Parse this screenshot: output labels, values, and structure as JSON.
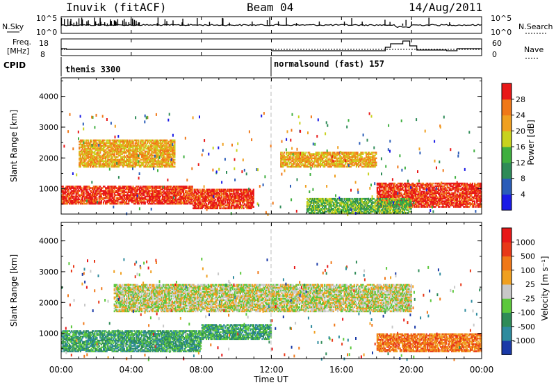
{
  "header": {
    "station": "Inuvik (fitACF)",
    "beam": "Beam 04",
    "date": "14/Aug/2011"
  },
  "top_panels": {
    "nsky_label": "N.Sky",
    "nsky_hi": "10^5",
    "nsky_lo": "10^0",
    "nsearch_label": "N.Search",
    "nsearch_hi": "10^5",
    "nsearch_lo": "10^0",
    "freq_label": "Freq.",
    "freq_unit": "[MHz]",
    "freq_hi": "18",
    "freq_lo": "8",
    "nave_label": "Nave",
    "nave_hi": "60",
    "nave_lo": "0",
    "cpid_label": "CPID",
    "cpid_1": "themis 3300",
    "cpid_2": "normalsound (fast) 157"
  },
  "chart_data": [
    {
      "type": "heatmap",
      "quantity": "Power",
      "ylabel": "Slant Range [km]",
      "xlabel": "Time UT",
      "ylim": [
        180,
        4600
      ],
      "yticks": [
        "1000",
        "2000",
        "3000",
        "4000"
      ],
      "xticks": [
        "00:00",
        "04:00",
        "08:00",
        "12:00",
        "16:00",
        "20:00",
        "00:00"
      ],
      "colorbar_label": "Power [dB]",
      "colorbar_ticks": [
        "4",
        "8",
        "12",
        "16",
        "20",
        "24",
        "28"
      ],
      "colorbar_colors": [
        "#1a1ae6",
        "#2a5cb8",
        "#2e8b57",
        "#3faf3f",
        "#c8d21e",
        "#f0a020",
        "#f07818",
        "#e81818"
      ],
      "echo_regions": [
        {
          "t0": 0.0,
          "t1": 7.5,
          "r0": 500,
          "r1": 1100,
          "level": 7
        },
        {
          "t0": 7.5,
          "t1": 11.0,
          "r0": 350,
          "r1": 1000,
          "level": 7
        },
        {
          "t0": 1.0,
          "t1": 6.5,
          "r0": 1700,
          "r1": 2600,
          "level": 5
        },
        {
          "t0": 12.5,
          "t1": 18.0,
          "r0": 1700,
          "r1": 2200,
          "level": 5
        },
        {
          "t0": 18.0,
          "t1": 24.0,
          "r0": 400,
          "r1": 1200,
          "level": 7
        },
        {
          "t0": 14.0,
          "t1": 20.0,
          "r0": 200,
          "r1": 700,
          "level": 3
        }
      ]
    },
    {
      "type": "heatmap",
      "quantity": "Velocity",
      "ylabel": "Slant Range [km]",
      "xlabel": "Time UT",
      "ylim": [
        180,
        4600
      ],
      "yticks": [
        "1000",
        "2000",
        "3000",
        "4000"
      ],
      "xticks": [
        "00:00",
        "04:00",
        "08:00",
        "12:00",
        "16:00",
        "20:00",
        "00:00"
      ],
      "colorbar_label": "Velocity [m s⁻¹]",
      "colorbar_ticks": [
        "1000",
        "500",
        "100",
        "25",
        "-25",
        "-100",
        "-500",
        "-1000"
      ],
      "colorbar_colors": [
        "#1a3aa8",
        "#2e8b9e",
        "#2e8b57",
        "#5cc83c",
        "#c8c8c8",
        "#f0a020",
        "#f07818",
        "#e83818",
        "#e81818"
      ],
      "echo_regions": [
        {
          "t0": 0.0,
          "t1": 8.0,
          "r0": 400,
          "r1": 1100,
          "level": 2
        },
        {
          "t0": 3.0,
          "t1": 20.0,
          "r0": 1700,
          "r1": 2600,
          "level": 4
        },
        {
          "t0": 8.0,
          "t1": 12.0,
          "r0": 800,
          "r1": 1300,
          "level": 2
        },
        {
          "t0": 18.0,
          "t1": 24.0,
          "r0": 400,
          "r1": 1000,
          "level": 6
        }
      ]
    }
  ],
  "colors": {
    "grid_line": "#000000",
    "dash_line": "#bbbbbb"
  }
}
